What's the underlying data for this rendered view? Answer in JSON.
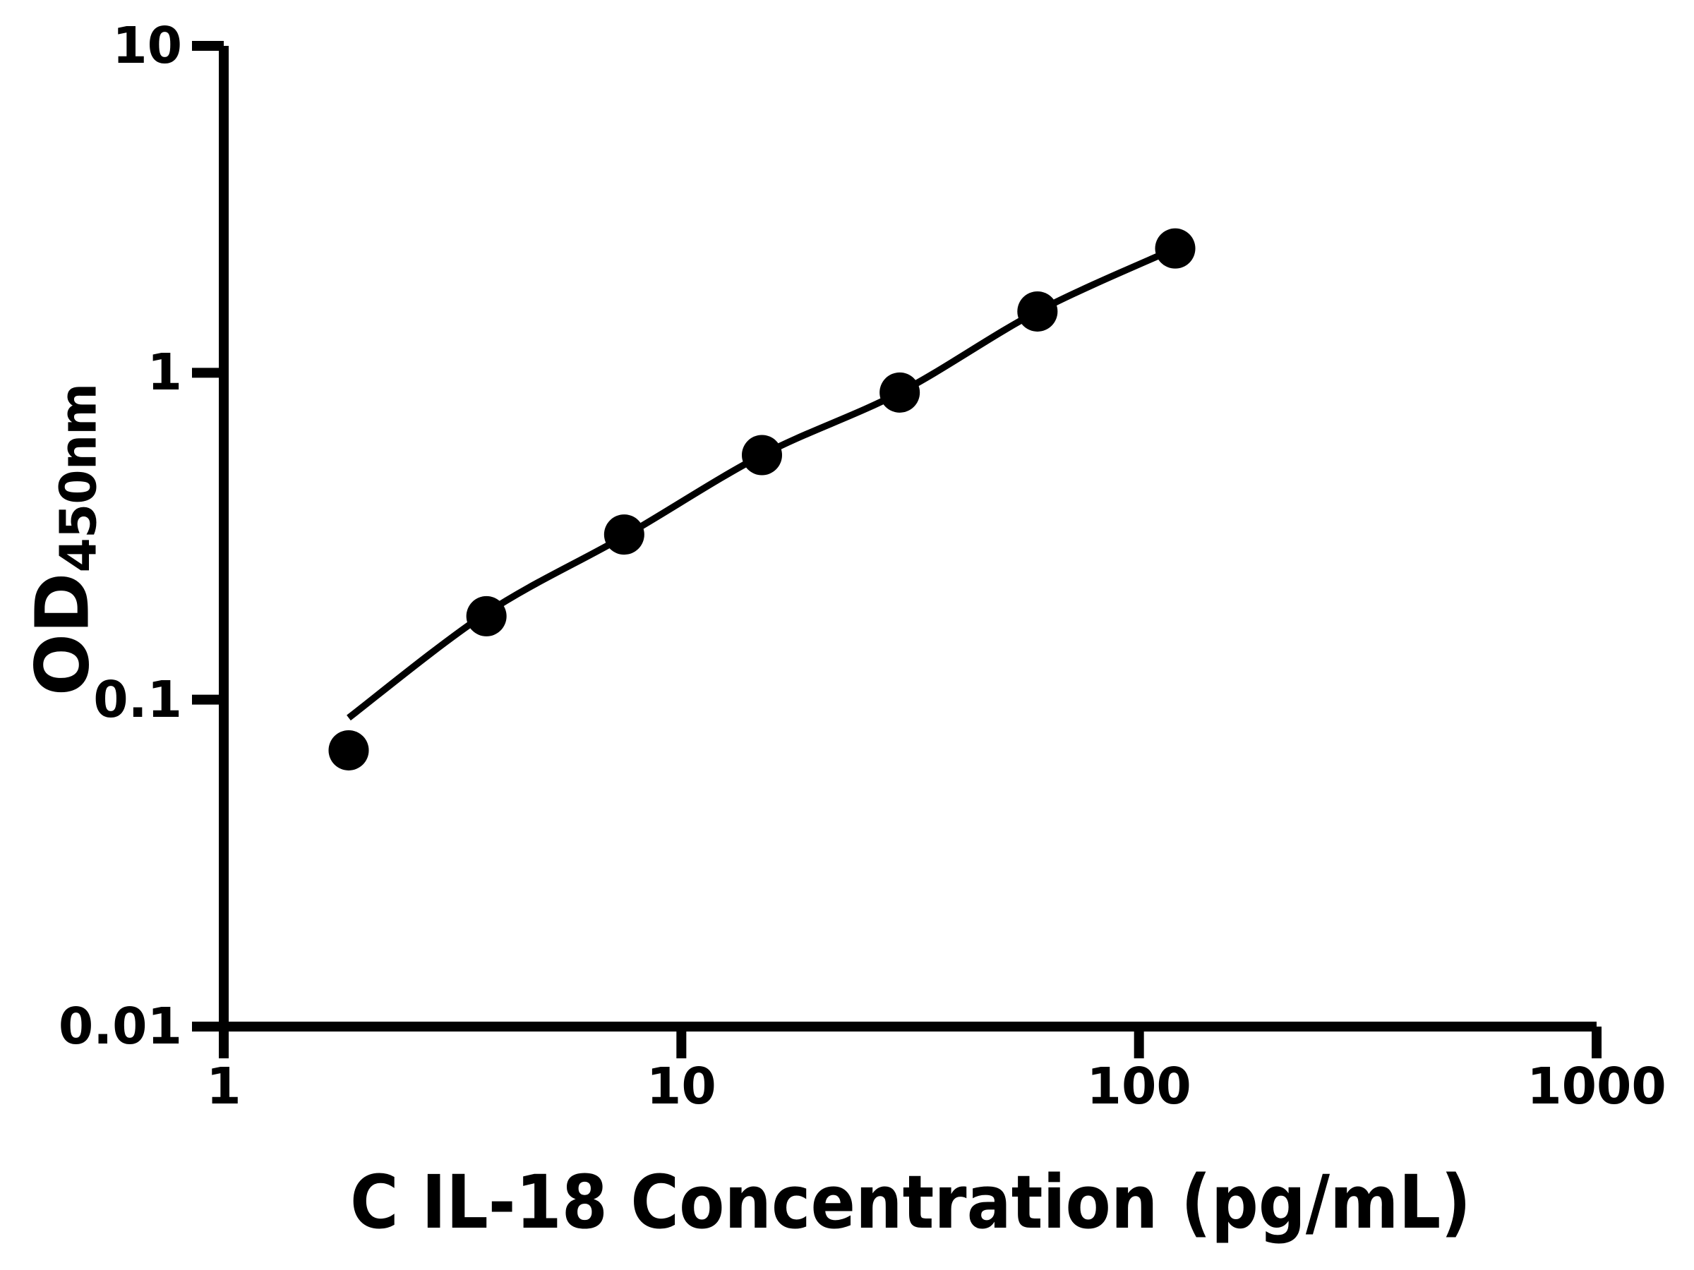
{
  "page": {
    "background_color": "#ffffff",
    "foreground_color": "#000000"
  },
  "chart_data": {
    "type": "scatter",
    "title": "",
    "xlabel": "C IL-18 Concentration (pg/mL)",
    "ylabel_main": "OD",
    "ylabel_subscript": "450nm",
    "x_scale": "log10",
    "y_scale": "log10",
    "xlim": [
      1,
      1000
    ],
    "ylim": [
      0.01,
      10
    ],
    "grid": false,
    "legend": false,
    "x_tick_labels": [
      "1",
      "10",
      "100",
      "1000"
    ],
    "x_tick_values": [
      1,
      10,
      100,
      1000
    ],
    "y_tick_labels": [
      "10",
      "1",
      "0.1",
      "0.01"
    ],
    "y_tick_values": [
      10,
      1,
      0.1,
      0.01
    ],
    "marker_shape": "filled-circle",
    "marker_color": "#000000",
    "line_color": "#000000",
    "series": [
      {
        "name": "standard-curve-points",
        "x": [
          1.875,
          3.75,
          7.5,
          15,
          30,
          60,
          120
        ],
        "y": [
          0.07,
          0.18,
          0.32,
          0.56,
          0.87,
          1.54,
          2.4
        ]
      }
    ],
    "fit_curve": {
      "name": "fitted-standard-curve",
      "x": [
        1.875,
        3.75,
        7.5,
        15,
        30,
        60,
        120
      ],
      "y": [
        0.088,
        0.184,
        0.316,
        0.56,
        0.87,
        1.54,
        2.4
      ]
    }
  }
}
